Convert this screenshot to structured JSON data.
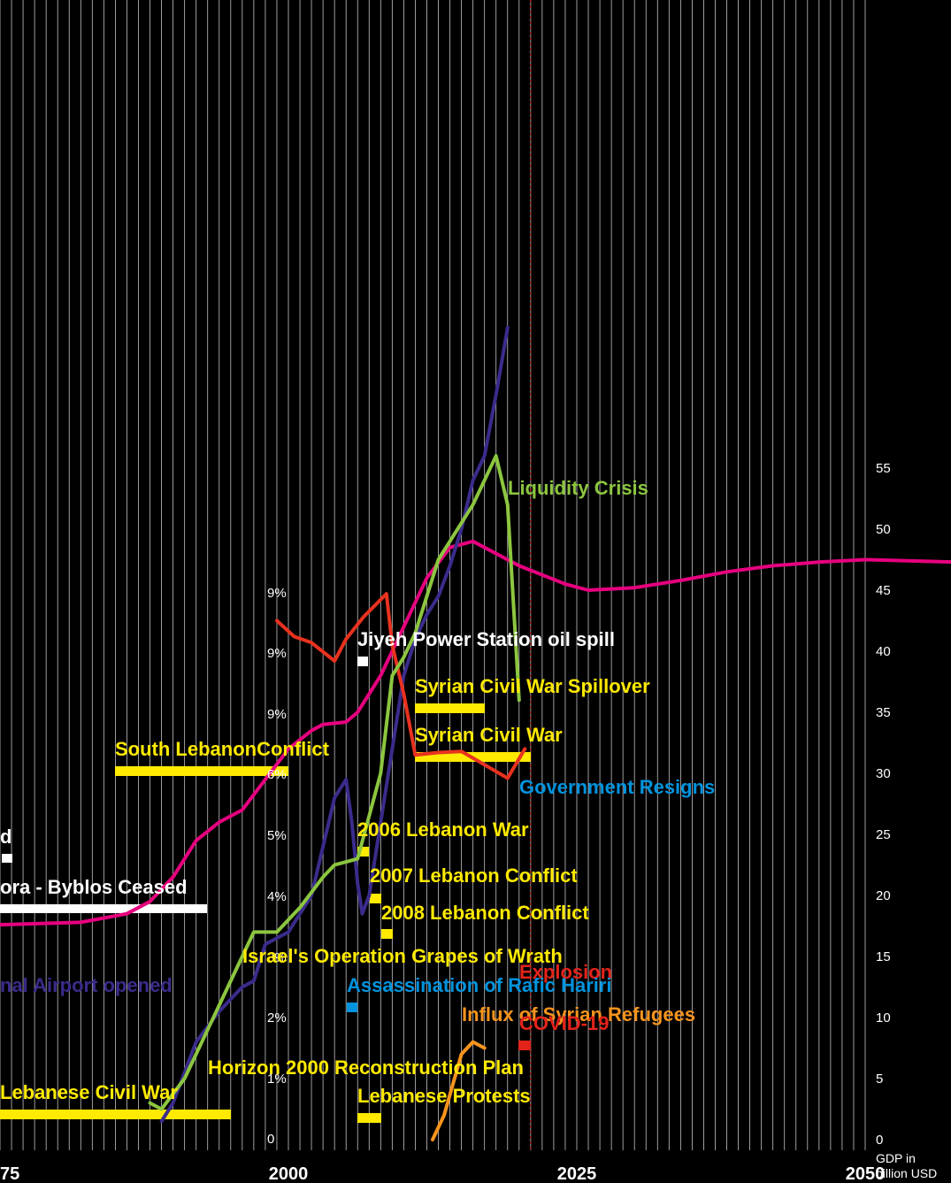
{
  "chart_data": {
    "type": "line",
    "x_axis": {
      "range": [
        1975,
        2050
      ],
      "ticks": [
        "75",
        "2000",
        "2025",
        "2050"
      ]
    },
    "right_axis": {
      "label_lines": [
        "GDP in",
        "billion USD"
      ],
      "range": [
        0,
        55
      ],
      "ticks": [
        "0",
        "5",
        "10",
        "15",
        "20",
        "25",
        "30",
        "35",
        "40",
        "45",
        "50",
        "55"
      ]
    },
    "inner_axis": {
      "ticks": [
        "0",
        "1%",
        "2%",
        "3%",
        "4%",
        "5%",
        "6%",
        "9%",
        "9%",
        "9%"
      ]
    },
    "reference_line": {
      "x": 2021,
      "color": "#e2231a"
    },
    "series": [
      {
        "color": "#e6007e",
        "points": [
          [
            1975,
            17.6
          ],
          [
            1982,
            17.8
          ],
          [
            1986,
            18.5
          ],
          [
            1988,
            19.5
          ],
          [
            1990,
            21.5
          ],
          [
            1992,
            24.5
          ],
          [
            1994,
            26
          ],
          [
            1996,
            27
          ],
          [
            1998,
            29.5
          ],
          [
            2000,
            32
          ],
          [
            2002,
            33.5
          ],
          [
            2003,
            34
          ],
          [
            2005,
            34.2
          ],
          [
            2006,
            35
          ],
          [
            2008,
            38
          ],
          [
            2010,
            42
          ],
          [
            2012,
            46
          ],
          [
            2014,
            48.5
          ],
          [
            2016,
            49
          ],
          [
            2018,
            48
          ],
          [
            2020,
            47
          ],
          [
            2024,
            45.5
          ],
          [
            2026,
            45
          ],
          [
            2030,
            45.2
          ],
          [
            2034,
            45.8
          ],
          [
            2038,
            46.5
          ],
          [
            2042,
            47
          ],
          [
            2046,
            47.3
          ],
          [
            2050,
            47.5
          ],
          [
            2058,
            47.3
          ]
        ]
      },
      {
        "color": "#3a2c8c",
        "points": [
          [
            1989,
            1.5
          ],
          [
            1990,
            3
          ],
          [
            1992,
            8
          ],
          [
            1994,
            10.5
          ],
          [
            1996,
            12.5
          ],
          [
            1997,
            13
          ],
          [
            1998,
            16
          ],
          [
            2000,
            17
          ],
          [
            2002,
            20
          ],
          [
            2004,
            28
          ],
          [
            2005,
            29.5
          ],
          [
            2005.5,
            26
          ],
          [
            2006,
            21
          ],
          [
            2006.4,
            18.5
          ],
          [
            2007,
            20
          ],
          [
            2009,
            32
          ],
          [
            2010,
            38
          ],
          [
            2011,
            41
          ],
          [
            2012,
            43
          ],
          [
            2013,
            44.5
          ],
          [
            2014,
            47
          ],
          [
            2015,
            50
          ],
          [
            2016,
            54
          ],
          [
            2017,
            56
          ],
          [
            2018,
            61
          ],
          [
            2019,
            66.5
          ]
        ]
      },
      {
        "color": "#e8321f",
        "points": [
          [
            1999,
            42.5
          ],
          [
            2000.5,
            41.2
          ],
          [
            2002,
            40.7
          ],
          [
            2004,
            39.2
          ],
          [
            2005,
            41
          ],
          [
            2006.5,
            42.8
          ],
          [
            2008.5,
            44.7
          ],
          [
            2009,
            40.5
          ],
          [
            2010,
            36.5
          ],
          [
            2011,
            31.5
          ],
          [
            2013,
            31.7
          ],
          [
            2015,
            31.8
          ],
          [
            2017,
            30.7
          ],
          [
            2019,
            29.6
          ],
          [
            2020.5,
            32
          ]
        ]
      },
      {
        "color": "#8cc63f",
        "points": [
          [
            1988,
            3
          ],
          [
            1989,
            2.5
          ],
          [
            1991,
            5
          ],
          [
            1993,
            9
          ],
          [
            1995,
            13
          ],
          [
            1997,
            17
          ],
          [
            1999,
            17
          ],
          [
            2001,
            19
          ],
          [
            2003,
            21.5
          ],
          [
            2004,
            22.5
          ],
          [
            2006,
            23
          ],
          [
            2008,
            30
          ],
          [
            2009,
            38
          ],
          [
            2010,
            39.5
          ],
          [
            2011,
            41.5
          ],
          [
            2012,
            44.5
          ],
          [
            2013,
            47.5
          ],
          [
            2015,
            50.5
          ],
          [
            2016,
            52
          ],
          [
            2017,
            54
          ],
          [
            2018,
            56
          ],
          [
            2019,
            52
          ],
          [
            2020,
            36
          ]
        ]
      },
      {
        "color": "#f7941d",
        "points": [
          [
            2012.5,
            0
          ],
          [
            2013.5,
            2
          ],
          [
            2015,
            7
          ],
          [
            2016,
            8
          ],
          [
            2017,
            7.5
          ]
        ]
      }
    ],
    "annotations": [
      {
        "text": "Liquidity Crisis",
        "color": "#8cc63f"
      },
      {
        "text": "Jiyeh Power Station oil spill",
        "color": "#ffffff"
      },
      {
        "text": "Syrian Civil War Spillover",
        "color": "#ffea00"
      },
      {
        "text": "Syrian Civil War",
        "color": "#ffea00"
      },
      {
        "text": "South LebanonConflict",
        "color": "#ffea00"
      },
      {
        "text": "Government Resigns",
        "color": "#0093dd"
      },
      {
        "text": "d",
        "color": "#ffffff"
      },
      {
        "text": "2006 Lebanon War",
        "color": "#ffea00"
      },
      {
        "text": "2007 Lebanon Conflict",
        "color": "#ffea00"
      },
      {
        "text": "2008 Lebanon Conflict",
        "color": "#ffea00"
      },
      {
        "text": "ora - Byblos Ceased",
        "color": "#ffffff"
      },
      {
        "text": "Israel's Operation Grapes of Wrath",
        "color": "#ffea00"
      },
      {
        "text": "Explosion",
        "color": "#e2231a"
      },
      {
        "text": "Assassination of Rafic Hariri",
        "color": "#0093dd"
      },
      {
        "text": "nal Airport opened",
        "color": "#3a2c8c"
      },
      {
        "text": "Influx of Syrian Refugees",
        "color": "#f7941d"
      },
      {
        "text": "COVID-19",
        "color": "#e2231a"
      },
      {
        "text": "Horizon 2000 Reconstruction Plan",
        "color": "#ffea00"
      },
      {
        "text": "Lebanese Civil War",
        "color": "#ffea00"
      },
      {
        "text": "Lebanese Protests",
        "color": "#ffea00"
      }
    ]
  }
}
